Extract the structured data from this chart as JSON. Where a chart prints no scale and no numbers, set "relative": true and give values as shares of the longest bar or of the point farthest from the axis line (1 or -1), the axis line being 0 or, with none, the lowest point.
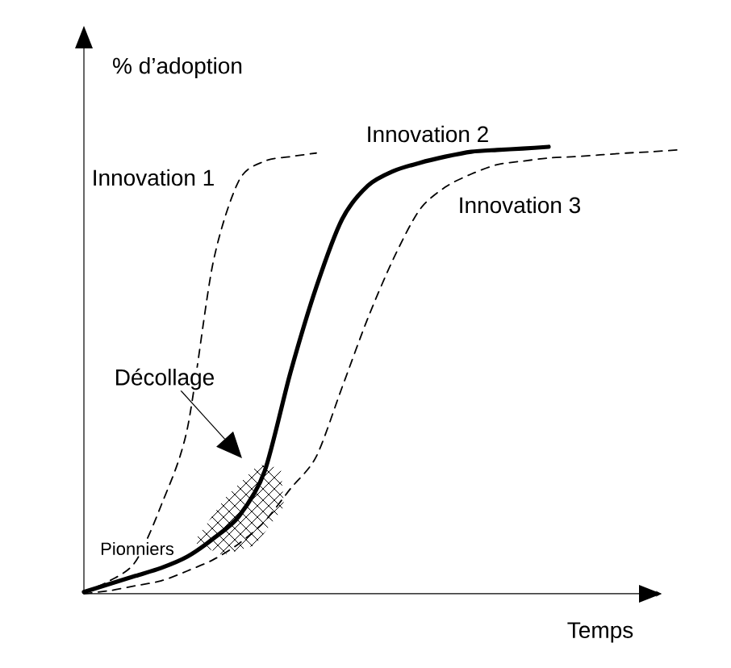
{
  "chart_data": {
    "type": "line",
    "relative": true,
    "xlabel": "Temps",
    "ylabel": "% d’adoption",
    "categories": [
      null,
      null,
      null,
      null,
      null,
      null,
      null,
      null,
      null,
      null,
      null,
      null,
      null,
      null,
      null,
      null,
      null,
      null,
      null,
      null,
      null,
      null,
      null,
      null
    ],
    "series": [
      {
        "name": "Innovation 1",
        "color": "#000000",
        "line_style": "dashed",
        "values": [
          0.004,
          0.029,
          0.072,
          0.199,
          0.368,
          0.74,
          0.924,
          0.968,
          0.978,
          0.986,
          null,
          null,
          null,
          null,
          null,
          null,
          null,
          null,
          null,
          null,
          null,
          null,
          null,
          null
        ]
      },
      {
        "name": "Innovation 2",
        "color": "#000000",
        "line_style": "solid",
        "values": [
          0.004,
          0.022,
          0.04,
          0.058,
          0.083,
          0.123,
          0.173,
          0.274,
          0.495,
          0.686,
          0.838,
          0.913,
          0.946,
          0.964,
          0.978,
          0.989,
          0.993,
          0.996,
          1.0,
          null,
          null,
          null,
          null,
          null
        ]
      },
      {
        "name": "Innovation 3",
        "color": "#000000",
        "line_style": "dashed",
        "values": [
          0.0,
          0.007,
          0.018,
          0.029,
          0.051,
          0.076,
          0.112,
          0.162,
          0.235,
          0.307,
          0.462,
          0.617,
          0.751,
          0.859,
          0.91,
          0.939,
          0.96,
          0.968,
          0.975,
          0.978,
          0.982,
          0.986,
          0.989,
          0.993
        ]
      }
    ],
    "annotations": [
      "Décollage",
      "Pionniers"
    ],
    "legend": false
  }
}
